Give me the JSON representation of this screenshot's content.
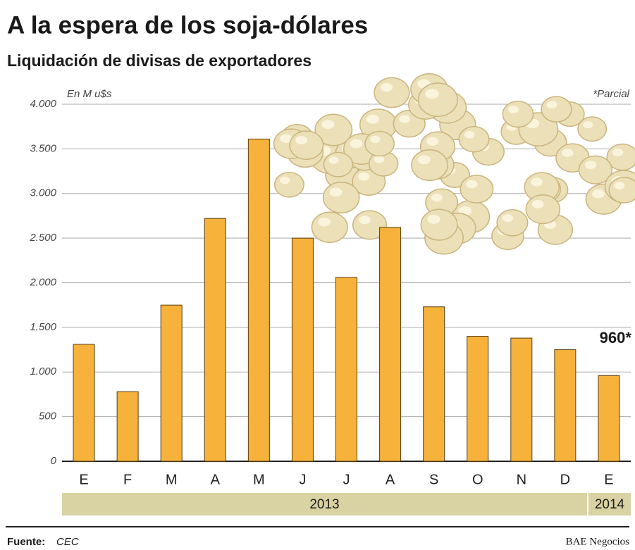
{
  "chart_data": {
    "type": "bar",
    "title": "A la espera de los soja-dólares",
    "subtitle": "Liquidación de divisas de exportadores",
    "y_label": "En M u$s",
    "note": "*Parcial",
    "categories": [
      "E",
      "F",
      "M",
      "A",
      "M",
      "J",
      "J",
      "A",
      "S",
      "O",
      "N",
      "D",
      "E"
    ],
    "values": [
      1310,
      780,
      1750,
      2720,
      3610,
      2500,
      2060,
      2620,
      1730,
      1400,
      1380,
      1250,
      960
    ],
    "value_labels": [
      null,
      null,
      null,
      null,
      null,
      null,
      null,
      null,
      null,
      null,
      null,
      null,
      "960*"
    ],
    "groups": [
      {
        "label": "2013",
        "span": 12
      },
      {
        "label": "2014",
        "span": 1
      }
    ],
    "color": "#f6b23a",
    "ylim": [
      0,
      4000
    ],
    "yticks": [
      0,
      500,
      {
        "value": 1000,
        "label": "1.000"
      },
      {
        "value": 1500,
        "label": "1.500"
      },
      {
        "value": 2000,
        "label": "2.000"
      },
      {
        "value": 2500,
        "label": "2.500"
      },
      {
        "value": 3000,
        "label": "3.000"
      },
      {
        "value": 3500,
        "label": "3.500"
      },
      {
        "value": 4000,
        "label": "4.000"
      }
    ],
    "grid": true,
    "source_label": "Fuente:",
    "source": "CEC",
    "credit": "BAE Negocios"
  }
}
